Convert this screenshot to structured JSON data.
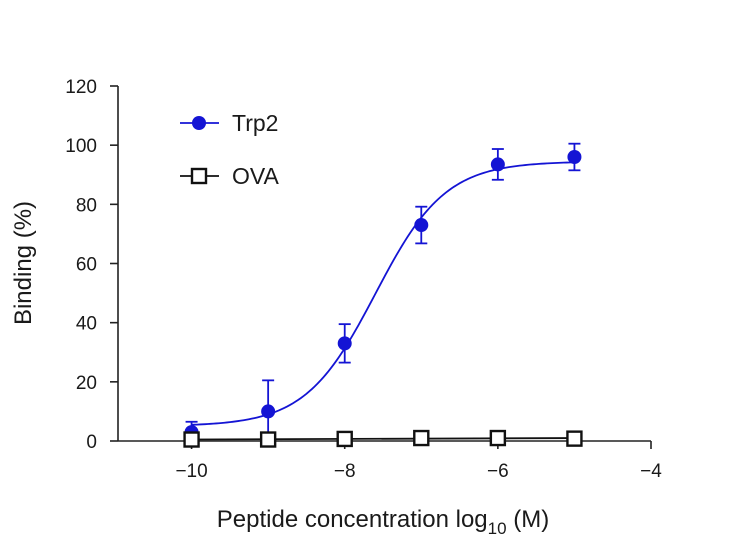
{
  "chart_data": {
    "type": "scatter",
    "title": "",
    "xlabel": {
      "main": "Peptide concentration log",
      "sub": "10",
      "unit": " (M)"
    },
    "ylabel": "Binding (%)",
    "xlim": [
      -11,
      -4
    ],
    "ylim": [
      0,
      120
    ],
    "xticks": [
      -10,
      -8,
      -6,
      -4
    ],
    "xtick_labels": [
      "−10",
      "−8",
      "−6",
      "−4"
    ],
    "yticks": [
      0,
      20,
      40,
      60,
      80,
      100,
      120
    ],
    "ytick_labels": [
      "0",
      "20",
      "40",
      "60",
      "80",
      "100",
      "120"
    ],
    "grid": false,
    "legend_position": "top-left",
    "series": [
      {
        "name": "Trp2",
        "color": "#1414d4",
        "marker": "filled-circle",
        "x": [
          -10,
          -9,
          -8,
          -7,
          -6,
          -5
        ],
        "y": [
          3,
          10,
          33,
          73,
          93.5,
          96
        ],
        "err": [
          3.5,
          10.5,
          6.5,
          6.2,
          5.2,
          4.5
        ],
        "fit": {
          "model": "sigmoid",
          "bottom": 5,
          "top": 94.5,
          "logEC50": -7.6,
          "hill": 0.95
        }
      },
      {
        "name": "OVA",
        "color": "#111111",
        "marker": "open-square",
        "x": [
          -10,
          -9,
          -8,
          -7,
          -6,
          -5
        ],
        "y": [
          0.5,
          0.5,
          0.7,
          1,
          1,
          0.8
        ],
        "err": [
          0,
          0,
          0,
          0,
          0,
          0
        ],
        "fit": {
          "model": "line",
          "y": [
            0.5,
            1
          ]
        }
      }
    ]
  }
}
